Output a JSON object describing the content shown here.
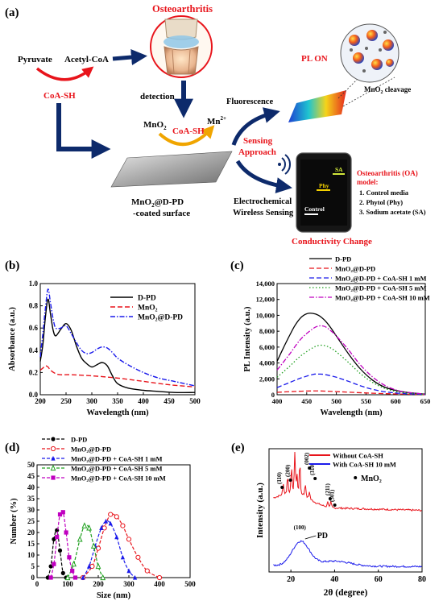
{
  "panel_a": {
    "panel_label": "(a)",
    "osteoarthritis": "Osteoarthritis",
    "pyruvate": "Pyruvate",
    "acetyl_coa": "Acetyl-CoA",
    "coa_sh": "CoA-SH",
    "detection": "detection",
    "mno2": "MnO",
    "mno2_sub": "2",
    "mn2": "Mn",
    "mn2_sup": "2+",
    "coa_sh_arrow": "CoA-SH",
    "surface_line1": "MnO",
    "surface_line1_sub": "2",
    "surface_line1_tail": "@D-PD",
    "surface_line2": "-coated surface",
    "sensing_line1": "Sensing",
    "sensing_line2": "Approach",
    "fluorescence": "Fluorescence",
    "electro_line1": "Electrochemical",
    "electro_line2": "Wireless Sensing",
    "pl_on": "PL ON",
    "cleavage": "MnO",
    "cleavage_sub": "2",
    "cleavage_tail": " cleavage",
    "phone_sa": "SA",
    "phone_phy": "Phy",
    "phone_control": "Control",
    "conductivity_change": "Conductivity Change",
    "model_title_line1": "Osteoarthritis (OA)",
    "model_title_line2": "model:",
    "model_items": [
      "1.  Control media",
      "2.  Phytol (Phy)",
      "3.  Sodium acetate (SA)"
    ]
  },
  "colors": {
    "red": "#e8141b",
    "navy": "#0d2a6b",
    "black_line": "#000000",
    "red_dash": "#e8141b",
    "blue_dashdot": "#1a1aeb",
    "green_dot": "#1fa01f",
    "magenta": "#c000c0",
    "xrd_red": "#e8141b",
    "xrd_blue": "#1a1aeb"
  },
  "chart_data": [
    {
      "panel_label": "(b)",
      "type": "line",
      "xlabel": "Wavelength (nm)",
      "ylabel": "Absorbance (a.u.)",
      "xlim": [
        200,
        500
      ],
      "ylim": [
        0,
        1.0
      ],
      "xticks": [
        "200",
        "250",
        "300",
        "350",
        "400",
        "450",
        "500"
      ],
      "yticks": [
        "0.0",
        "0.2",
        "0.4",
        "0.6",
        "0.8",
        "1.0"
      ],
      "legend_position": "top-right",
      "series": [
        {
          "name": "D-PD",
          "style": "solid",
          "color": "#000000",
          "x": [
            200,
            205,
            210,
            215,
            220,
            225,
            230,
            240,
            250,
            260,
            270,
            280,
            290,
            300,
            310,
            320,
            330,
            340,
            350,
            370,
            400,
            430,
            460,
            500
          ],
          "y": [
            0.3,
            0.45,
            0.7,
            0.86,
            0.72,
            0.58,
            0.53,
            0.59,
            0.64,
            0.58,
            0.44,
            0.33,
            0.28,
            0.25,
            0.27,
            0.29,
            0.26,
            0.17,
            0.1,
            0.06,
            0.04,
            0.03,
            0.02,
            0.02
          ]
        },
        {
          "name": "MnO₂",
          "style": "dashed",
          "color": "#e8141b",
          "x": [
            200,
            205,
            210,
            215,
            220,
            230,
            240,
            260,
            300,
            350,
            400,
            450,
            500
          ],
          "y": [
            0.22,
            0.24,
            0.26,
            0.25,
            0.22,
            0.19,
            0.18,
            0.18,
            0.17,
            0.15,
            0.12,
            0.09,
            0.07
          ]
        },
        {
          "name": "MnO₂@D-PD",
          "style": "dashdot",
          "color": "#1a1aeb",
          "x": [
            200,
            205,
            210,
            215,
            220,
            225,
            230,
            240,
            250,
            260,
            270,
            280,
            290,
            300,
            310,
            320,
            330,
            340,
            350,
            370,
            400,
            430,
            460,
            500
          ],
          "y": [
            0.34,
            0.55,
            0.78,
            0.95,
            0.82,
            0.68,
            0.6,
            0.6,
            0.62,
            0.55,
            0.47,
            0.4,
            0.37,
            0.38,
            0.41,
            0.43,
            0.42,
            0.38,
            0.33,
            0.27,
            0.2,
            0.15,
            0.12,
            0.08
          ]
        }
      ]
    },
    {
      "panel_label": "(c)",
      "type": "line",
      "xlabel": "Wavelength (nm)",
      "ylabel": "PL Intensity (a.u.)",
      "xlim": [
        400,
        650
      ],
      "ylim": [
        0,
        14000
      ],
      "xticks": [
        "400",
        "450",
        "500",
        "550",
        "600",
        "650"
      ],
      "yticks": [
        "0",
        "2,000",
        "4,000",
        "6,000",
        "8,000",
        "10,000",
        "12,000",
        "14,000"
      ],
      "legend_position": "top",
      "series": [
        {
          "name": "D-PD",
          "style": "solid",
          "color": "#000000",
          "x": [
            400,
            410,
            420,
            430,
            440,
            450,
            460,
            470,
            480,
            490,
            500,
            520,
            540,
            560,
            580,
            600,
            620,
            650
          ],
          "y": [
            4200,
            5800,
            7300,
            8700,
            9700,
            10200,
            10250,
            10000,
            9400,
            8500,
            7400,
            5200,
            3300,
            1900,
            1000,
            550,
            280,
            80
          ]
        },
        {
          "name": "MnO₂@D-PD",
          "style": "dashed",
          "color": "#e8141b",
          "x": [
            400,
            430,
            460,
            480,
            500,
            550,
            600,
            650
          ],
          "y": [
            300,
            420,
            480,
            460,
            400,
            220,
            100,
            30
          ]
        },
        {
          "name": "MnO₂@D-PD + CoA-SH 1 mM",
          "style": "dashed",
          "color": "#1a1aeb",
          "x": [
            400,
            420,
            440,
            460,
            470,
            480,
            500,
            520,
            540,
            560,
            580,
            600,
            620,
            650
          ],
          "y": [
            900,
            1500,
            2100,
            2550,
            2600,
            2550,
            2200,
            1700,
            1150,
            700,
            400,
            220,
            120,
            40
          ]
        },
        {
          "name": "MnO₂@D-PD + CoA-SH 5 mM",
          "style": "dotted",
          "color": "#1fa01f",
          "x": [
            400,
            420,
            440,
            460,
            470,
            480,
            490,
            500,
            520,
            540,
            560,
            580,
            600,
            620,
            650
          ],
          "y": [
            2200,
            3500,
            4900,
            5900,
            6200,
            6200,
            5900,
            5400,
            4100,
            2700,
            1600,
            850,
            420,
            200,
            60
          ]
        },
        {
          "name": "MnO₂@D-PD + CoA-SH 10 mM",
          "style": "dashdot",
          "color": "#c000c0",
          "x": [
            400,
            420,
            440,
            460,
            470,
            480,
            490,
            500,
            520,
            540,
            560,
            580,
            600,
            620,
            650
          ],
          "y": [
            3100,
            5000,
            7000,
            8300,
            8650,
            8600,
            8100,
            7400,
            5700,
            3800,
            2300,
            1250,
            620,
            300,
            90
          ]
        }
      ]
    },
    {
      "panel_label": "(d)",
      "type": "line",
      "xlabel": "Size (nm)",
      "ylabel": "Number (%)",
      "xlim": [
        0,
        500
      ],
      "ylim": [
        0,
        50
      ],
      "xticks": [
        "0",
        "100",
        "200",
        "300",
        "400",
        "500"
      ],
      "yticks": [
        "0",
        "5",
        "10",
        "15",
        "20",
        "25",
        "30",
        "35",
        "40",
        "45",
        "50"
      ],
      "legend_position": "top-left",
      "series": [
        {
          "name": "D-PD",
          "marker": "filled-circle",
          "color": "#000000",
          "x": [
            35,
            45,
            55,
            65,
            75,
            85,
            95
          ],
          "y": [
            0,
            5,
            17,
            21,
            12,
            2,
            0
          ]
        },
        {
          "name": "MnO₂@D-PD",
          "marker": "open-circle",
          "color": "#e8141b",
          "x": [
            150,
            180,
            200,
            220,
            240,
            260,
            280,
            300,
            330,
            360,
            400
          ],
          "y": [
            0,
            5,
            13,
            22,
            28,
            27,
            23,
            17,
            9,
            3,
            0
          ]
        },
        {
          "name": "MnO₂@D-PD + CoA-SH 1 mM",
          "marker": "filled-triangle",
          "color": "#1a1aeb",
          "x": [
            150,
            170,
            190,
            210,
            225,
            240,
            260,
            280,
            300,
            320
          ],
          "y": [
            0,
            5,
            14,
            22,
            25,
            24,
            18,
            9,
            3,
            0
          ]
        },
        {
          "name": "MnO₂@D-PD + CoA-SH 5 mM",
          "marker": "open-triangle",
          "color": "#1fa01f",
          "x": [
            100,
            120,
            140,
            155,
            170,
            185,
            200,
            215
          ],
          "y": [
            0,
            6,
            17,
            23,
            22,
            14,
            5,
            0
          ]
        },
        {
          "name": "MnO₂@D-PD + CoA-SH 10 mM",
          "marker": "filled-square",
          "color": "#c000c0",
          "x": [
            45,
            55,
            65,
            75,
            85,
            95,
            105,
            115,
            125
          ],
          "y": [
            0,
            6,
            18,
            28,
            29,
            20,
            9,
            3,
            0
          ]
        }
      ]
    },
    {
      "panel_label": "(e)",
      "type": "line",
      "xlabel": "2θ (degree)",
      "ylabel": "Intensity (a.u.)",
      "xlim": [
        10,
        80
      ],
      "xticks": [
        "20",
        "40",
        "60",
        "80"
      ],
      "legend_position": "top-right",
      "peak_labels": [
        "(110)",
        "(200)",
        "(002)",
        "(310)",
        "(211)",
        "(301)"
      ],
      "peak_label_legend": "MnO₂",
      "pd_label": "PD",
      "pd_peak_label": "(100)",
      "series": [
        {
          "name": "Without CoA-SH",
          "color": "#e8141b"
        },
        {
          "name": "With CoA-SH 10 mM",
          "color": "#1a1aeb"
        }
      ]
    }
  ]
}
